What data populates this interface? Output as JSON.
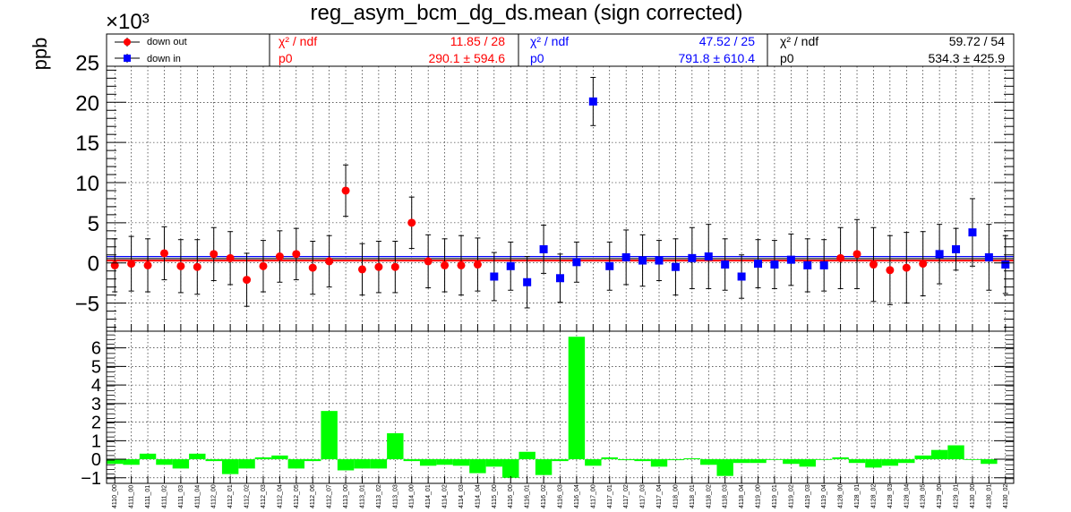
{
  "chart_data": [
    {
      "type": "scatter",
      "title": "reg_asym_bcm_dg_ds.mean (sign corrected)",
      "ylabel": "ppb",
      "y_multiplier": "×10³",
      "ylim": [
        -8.5,
        28.5
      ],
      "yticks": [
        "−5",
        "0",
        "5",
        "10",
        "15",
        "20",
        "25"
      ],
      "grid": true,
      "categories": [
        "4110_00",
        "4111_00",
        "4111_01",
        "4111_02",
        "4111_03",
        "4111_04",
        "4112_00",
        "4112_01",
        "4112_02",
        "4112_03",
        "4112_04",
        "4112_05",
        "4112_06",
        "4112_07",
        "4113_00",
        "4113_01",
        "4113_02",
        "4113_03",
        "4114_00",
        "4114_01",
        "4114_02",
        "4114_03",
        "4114_04",
        "4115_00",
        "4116_00",
        "4116_01",
        "4116_02",
        "4116_03",
        "4116_04",
        "4117_00",
        "4117_01",
        "4117_02",
        "4117_03",
        "4117_04",
        "4118_00",
        "4118_01",
        "4118_02",
        "4118_03",
        "4118_04",
        "4119_00",
        "4119_01",
        "4119_02",
        "4119_03",
        "4119_04",
        "4128_00",
        "4128_01",
        "4128_02",
        "4128_03",
        "4128_04",
        "4128_05",
        "4129_00",
        "4129_01",
        "4130_00",
        "4130_01",
        "4130_02"
      ],
      "series": [
        {
          "name": "down out",
          "color": "#ff0000",
          "marker": "circle",
          "fit_line": 0.29,
          "y": [
            -0.3,
            -0.1,
            -0.3,
            1.2,
            -0.4,
            -0.5,
            1.1,
            0.6,
            -2.1,
            -0.4,
            0.8,
            1.1,
            -0.6,
            0.2,
            9.0,
            -0.8,
            -0.5,
            -0.5,
            5.0,
            0.2,
            -0.3,
            -0.3,
            -0.2,
            null,
            null,
            null,
            null,
            null,
            null,
            null,
            null,
            null,
            null,
            null,
            null,
            null,
            null,
            null,
            null,
            null,
            null,
            null,
            null,
            null,
            0.6,
            1.1,
            -0.2,
            -0.9,
            -0.6,
            -0.1,
            null,
            null,
            null,
            null,
            null
          ],
          "err": [
            3.3,
            3.4,
            3.3,
            3.3,
            3.3,
            3.4,
            3.3,
            3.3,
            3.3,
            3.2,
            3.2,
            3.2,
            3.3,
            3.2,
            3.2,
            3.2,
            3.2,
            3.2,
            3.2,
            3.3,
            3.3,
            3.7,
            3.3,
            null,
            null,
            null,
            null,
            null,
            null,
            null,
            null,
            null,
            null,
            null,
            null,
            null,
            null,
            null,
            null,
            null,
            null,
            null,
            null,
            null,
            3.8,
            4.3,
            4.6,
            4.3,
            4.4,
            4.0,
            null,
            null,
            null,
            null,
            null
          ]
        },
        {
          "name": "down in",
          "color": "#0000ff",
          "marker": "square",
          "fit_line": 0.79,
          "y": [
            null,
            null,
            null,
            null,
            null,
            null,
            null,
            null,
            null,
            null,
            null,
            null,
            null,
            null,
            null,
            null,
            null,
            null,
            null,
            null,
            null,
            null,
            null,
            -1.7,
            -0.4,
            -2.4,
            1.7,
            -1.9,
            0.1,
            20.1,
            -0.4,
            0.7,
            0.3,
            0.3,
            -0.5,
            0.6,
            0.8,
            -0.2,
            -1.7,
            -0.1,
            -0.2,
            0.4,
            -0.3,
            -0.3,
            null,
            null,
            null,
            null,
            null,
            null,
            1.1,
            1.7,
            3.8,
            0.7,
            -0.2
          ],
          "err": [
            null,
            null,
            null,
            null,
            null,
            null,
            null,
            null,
            null,
            null,
            null,
            null,
            null,
            null,
            null,
            null,
            null,
            null,
            null,
            null,
            null,
            null,
            null,
            3.0,
            3.0,
            3.2,
            3.0,
            3.0,
            2.5,
            3.0,
            3.0,
            3.4,
            3.2,
            2.5,
            3.5,
            3.8,
            4.0,
            3.2,
            2.7,
            3.0,
            3.0,
            3.2,
            3.3,
            3.2,
            null,
            null,
            null,
            null,
            null,
            null,
            3.7,
            2.6,
            4.2,
            4.1,
            3.6
          ]
        }
      ],
      "fit_line_all": 0.534,
      "stats": [
        {
          "color": "#ff0000",
          "chi_label": "χ² / ndf",
          "chi_value": "11.85 / 28",
          "p_label": "p0",
          "p_value": "290.1 ± 594.6"
        },
        {
          "color": "#0000ff",
          "chi_label": "χ² / ndf",
          "chi_value": "47.52 / 25",
          "p_label": "p0",
          "p_value": "791.8 ± 610.4"
        },
        {
          "color": "#000000",
          "chi_label": "χ² / ndf",
          "chi_value": "59.72 / 54",
          "p_label": "p0",
          "p_value": "534.3 ± 425.9"
        }
      ]
    },
    {
      "type": "bar",
      "ylim": [
        -1.3,
        6.9
      ],
      "yticks": [
        "−1",
        "0",
        "1",
        "2",
        "3",
        "4",
        "5",
        "6"
      ],
      "bar_color": "#00ff00",
      "grid": true,
      "values": [
        -0.25,
        -0.3,
        0.3,
        -0.3,
        -0.5,
        0.3,
        -0.1,
        -0.8,
        -0.5,
        0.1,
        0.2,
        -0.5,
        -0.1,
        2.6,
        -0.6,
        -0.5,
        -0.5,
        1.4,
        -0.1,
        -0.35,
        -0.3,
        -0.35,
        -0.75,
        -0.4,
        -1.0,
        0.4,
        -0.85,
        -0.1,
        6.6,
        -0.35,
        0.1,
        -0.05,
        -0.1,
        -0.4,
        -0.05,
        0.05,
        -0.3,
        -0.9,
        -0.2,
        -0.2,
        0.0,
        -0.25,
        -0.4,
        0.0,
        0.1,
        -0.2,
        -0.45,
        -0.35,
        -0.2,
        0.2,
        0.5,
        0.75,
        0.0,
        -0.25
      ]
    }
  ]
}
